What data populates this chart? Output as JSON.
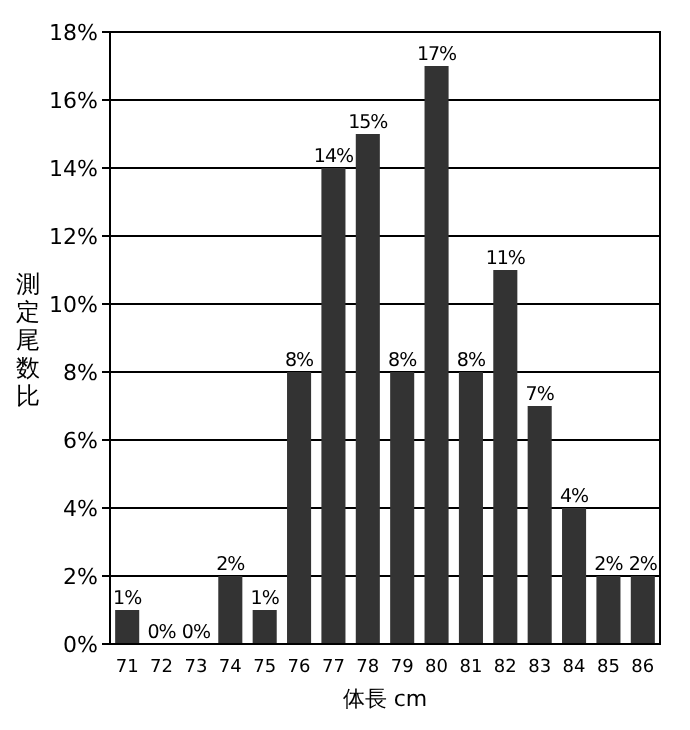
{
  "chart_data": {
    "type": "bar",
    "xlabel": "体長 cm",
    "ylabel": "測定尾数比",
    "categories": [
      "71",
      "72",
      "73",
      "74",
      "75",
      "76",
      "77",
      "78",
      "79",
      "80",
      "81",
      "82",
      "83",
      "84",
      "85",
      "86"
    ],
    "values": [
      1,
      0,
      0,
      2,
      1,
      8,
      14,
      15,
      8,
      17,
      8,
      11,
      7,
      4,
      2,
      2
    ],
    "value_labels": [
      "1%",
      "0%",
      "0%",
      "2%",
      "1%",
      "8%",
      "14%",
      "15%",
      "8%",
      "17%",
      "8%",
      "11%",
      "7%",
      "4%",
      "2%",
      "2%"
    ],
    "color": "#333333",
    "ylim": [
      0,
      18
    ],
    "yticks": [
      {
        "value": 0,
        "label": "0%"
      },
      {
        "value": 2,
        "label": "2%"
      },
      {
        "value": 4,
        "label": "4%"
      },
      {
        "value": 6,
        "label": "6%"
      },
      {
        "value": 8,
        "label": "8%"
      },
      {
        "value": 10,
        "label": "10%"
      },
      {
        "value": 12,
        "label": "12%"
      },
      {
        "value": 14,
        "label": "14%"
      },
      {
        "value": 16,
        "label": "16%"
      },
      {
        "value": 18,
        "label": "18%"
      }
    ],
    "grid": "y"
  }
}
